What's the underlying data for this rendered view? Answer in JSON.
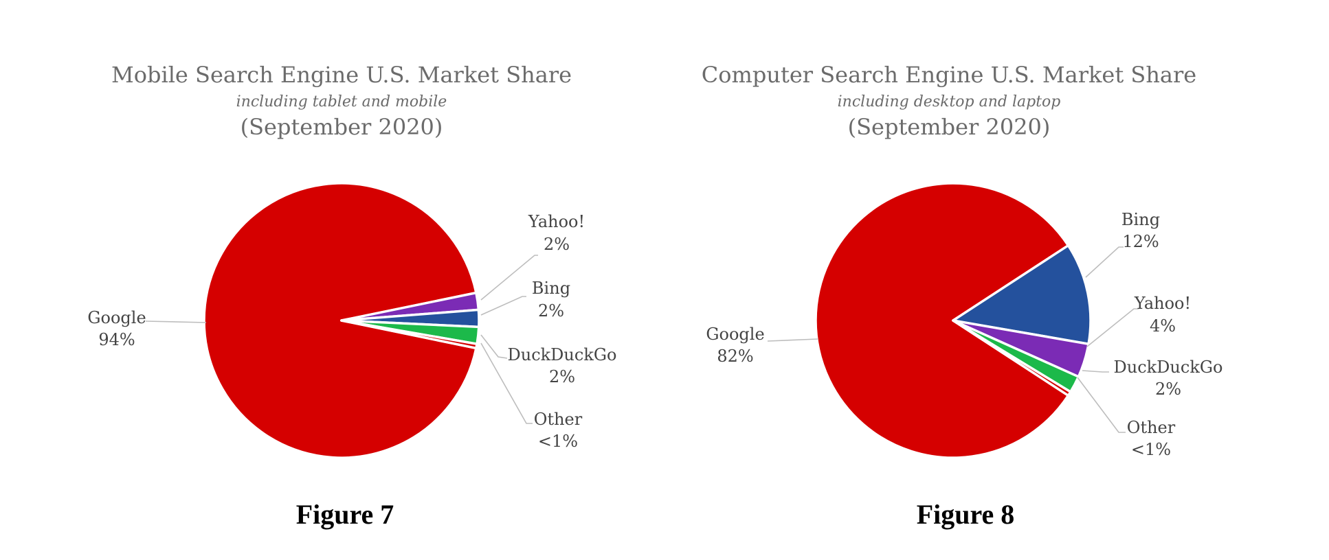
{
  "chart_data": [
    {
      "type": "pie",
      "title": "Mobile Search Engine U.S. Market Share",
      "subtitle": "including tablet and mobile",
      "period": "(September 2020)",
      "caption": "Figure 7",
      "slices": [
        {
          "name": "Google",
          "value": 94,
          "value_label": "94%",
          "color": "#d50000"
        },
        {
          "name": "Yahoo!",
          "value": 2,
          "value_label": "2%",
          "color": "#7b2bb5"
        },
        {
          "name": "Bing",
          "value": 2,
          "value_label": "2%",
          "color": "#24519d"
        },
        {
          "name": "DuckDuckGo",
          "value": 2,
          "value_label": "2%",
          "color": "#1cb94a"
        },
        {
          "name": "Other",
          "value": 0.5,
          "value_label": "<1%",
          "color": "#d50000"
        }
      ]
    },
    {
      "type": "pie",
      "title": "Computer Search Engine U.S. Market Share",
      "subtitle": "including desktop and laptop",
      "period": "(September 2020)",
      "caption": "Figure 8",
      "slices": [
        {
          "name": "Google",
          "value": 82,
          "value_label": "82%",
          "color": "#d50000"
        },
        {
          "name": "Bing",
          "value": 12,
          "value_label": "12%",
          "color": "#24519d"
        },
        {
          "name": "Yahoo!",
          "value": 4,
          "value_label": "4%",
          "color": "#7b2bb5"
        },
        {
          "name": "DuckDuckGo",
          "value": 2,
          "value_label": "2%",
          "color": "#1cb94a"
        },
        {
          "name": "Other",
          "value": 0.5,
          "value_label": "<1%",
          "color": "#d50000"
        }
      ]
    }
  ]
}
